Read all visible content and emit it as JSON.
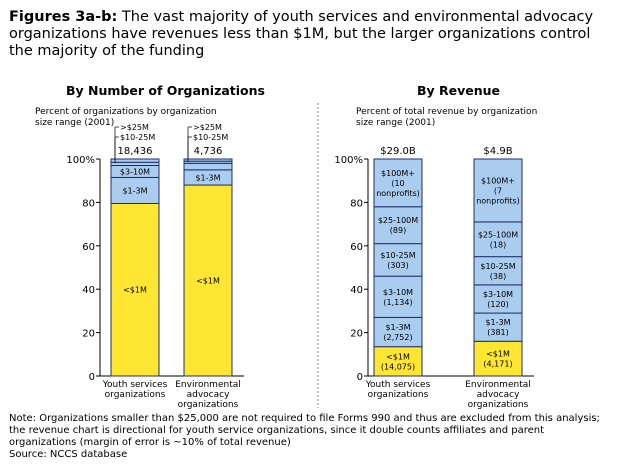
{
  "figure": {
    "title_bold": "Figures 3a-b:",
    "title_rest": " The vast majority of youth services and environmental advocacy organizations have revenues less than $1M, but the larger organizations control the majority of the funding",
    "note_lines": [
      "Note: Organizations smaller than $25,000 are not required to file Forms 990 and thus are excluded from this analysis;",
      "the revenue chart is directional for youth service organizations, since it double counts affiliates and parent",
      "organizations (margin of error is ~10% of total revenue)",
      "Source: NCCS database"
    ]
  },
  "colors": {
    "yellow": "#FFE633",
    "blue": "#A9CCEF",
    "edge": "#1F2F6A"
  },
  "chart_data": [
    {
      "type": "bar",
      "stacked": true,
      "title": "By Number of Organizations",
      "ylabel_lines": [
        "Percent of organizations by organization",
        "size range (2001)"
      ],
      "ylim": [
        0,
        100
      ],
      "yticks": [
        "0",
        "20",
        "40",
        "60",
        "80",
        "100%"
      ],
      "categories": [
        [
          "Youth services",
          "organizations"
        ],
        [
          "Environmental",
          "advocacy",
          "organizations"
        ]
      ],
      "totals": [
        "18,436",
        "4,736"
      ],
      "segments": [
        {
          "name": "<$1M",
          "color": "yellow",
          "values": [
            79.5,
            88
          ],
          "labels": [
            [
              "<$1M"
            ],
            [
              "<$1M"
            ]
          ]
        },
        {
          "name": "$1-3M",
          "color": "blue",
          "values": [
            12,
            7
          ],
          "labels": [
            [
              "$1-3M"
            ],
            [
              "$1-3M"
            ]
          ]
        },
        {
          "name": "$3-10M",
          "color": "blue",
          "values": [
            5.5,
            3
          ],
          "labels": [
            [
              "$3-10M"
            ],
            [
              ""
            ]
          ]
        },
        {
          "name": "$10-25M",
          "color": "blue",
          "values": [
            1.5,
            1
          ],
          "labels": [
            [
              ""
            ],
            [
              ""
            ]
          ]
        },
        {
          "name": ">$25M",
          "color": "blue",
          "values": [
            1.5,
            1
          ],
          "labels": [
            [
              ""
            ],
            [
              ""
            ]
          ]
        }
      ],
      "callouts": [
        ">$25M",
        "$10-25M",
        ">$25M",
        "$10-25M"
      ]
    },
    {
      "type": "bar",
      "stacked": true,
      "title": "By Revenue",
      "ylabel_lines": [
        "Percent of total revenue by organization",
        "size range (2001)"
      ],
      "ylim": [
        0,
        100
      ],
      "yticks": [
        "0",
        "20",
        "40",
        "60",
        "80",
        "100%"
      ],
      "categories": [
        [
          "Youth services",
          "organizations"
        ],
        [
          "Environmental",
          "advocacy",
          "organizations"
        ]
      ],
      "totals": [
        "$29.0B",
        "$4.9B"
      ],
      "segments": [
        {
          "name": "<$1M",
          "color": "yellow",
          "values": [
            13.5,
            16
          ],
          "labels": [
            [
              "<$1M",
              "(14,075)"
            ],
            [
              "<$1M",
              "(4,171)"
            ]
          ]
        },
        {
          "name": "$1-3M",
          "color": "blue",
          "values": [
            13.5,
            13
          ],
          "labels": [
            [
              "$1-3M",
              "(2,752)"
            ],
            [
              "$1-3M",
              "(381)"
            ]
          ]
        },
        {
          "name": "$3-10M",
          "color": "blue",
          "values": [
            19,
            13
          ],
          "labels": [
            [
              "$3-10M",
              "(1,134)"
            ],
            [
              "$3-10M",
              "(120)"
            ]
          ]
        },
        {
          "name": "$10-25M",
          "color": "blue",
          "values": [
            15,
            13
          ],
          "labels": [
            [
              "$10-25M",
              "(303)"
            ],
            [
              "$10-25M",
              "(38)"
            ]
          ]
        },
        {
          "name": "$25-100M",
          "color": "blue",
          "values": [
            17,
            16
          ],
          "labels": [
            [
              "$25-100M",
              "(89)"
            ],
            [
              "$25-100M",
              "(18)"
            ]
          ]
        },
        {
          "name": "$100M+",
          "color": "blue",
          "values": [
            22,
            29
          ],
          "labels": [
            [
              "$100M+",
              "(10",
              "nonprofits)"
            ],
            [
              "$100M+",
              "(7",
              "nonprofits)"
            ]
          ]
        }
      ]
    }
  ]
}
